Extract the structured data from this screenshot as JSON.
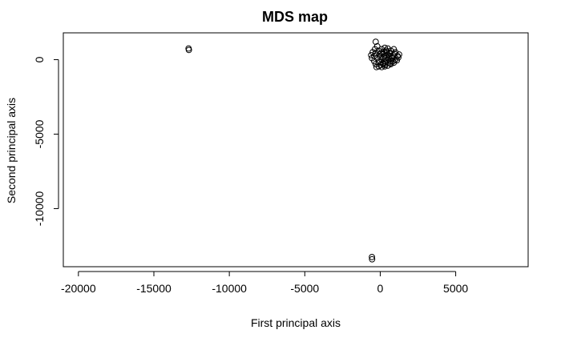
{
  "chart_data": {
    "type": "scatter",
    "title": "MDS map",
    "xlabel": "First principal axis",
    "ylabel": "Second principal axis",
    "xlim": [
      -21000,
      9800
    ],
    "ylim": [
      -13900,
      1800
    ],
    "xticks": [
      -20000,
      -15000,
      -10000,
      -5000,
      0,
      5000
    ],
    "xtick_labels": [
      "-20000",
      "-15000",
      "-10000",
      "-5000",
      "0",
      "5000"
    ],
    "yticks": [
      0,
      -5000,
      -10000
    ],
    "ytick_labels": [
      "0",
      "-5000",
      "-10000"
    ],
    "marker": "open-circle",
    "color": "#000000",
    "points": [
      {
        "x": -12700,
        "y": 750
      },
      {
        "x": -12680,
        "y": 650
      },
      {
        "x": -550,
        "y": -13250
      },
      {
        "x": -540,
        "y": -13400
      },
      {
        "x": -300,
        "y": 1200
      },
      {
        "x": -200,
        "y": 900
      },
      {
        "x": -500,
        "y": 500
      },
      {
        "x": -600,
        "y": 300
      },
      {
        "x": -550,
        "y": 100
      },
      {
        "x": -400,
        "y": -100
      },
      {
        "x": -300,
        "y": -300
      },
      {
        "x": -250,
        "y": -500
      },
      {
        "x": -100,
        "y": -450
      },
      {
        "x": 0,
        "y": -350
      },
      {
        "x": 100,
        "y": -500
      },
      {
        "x": 200,
        "y": -300
      },
      {
        "x": 300,
        "y": -450
      },
      {
        "x": 500,
        "y": -400
      },
      {
        "x": 700,
        "y": -300
      },
      {
        "x": 900,
        "y": -200
      },
      {
        "x": 1100,
        "y": -50
      },
      {
        "x": 1200,
        "y": 150
      },
      {
        "x": 1250,
        "y": 350
      },
      {
        "x": 1000,
        "y": 500
      },
      {
        "x": 900,
        "y": 700
      },
      {
        "x": 700,
        "y": 600
      },
      {
        "x": 500,
        "y": 750
      },
      {
        "x": 300,
        "y": 800
      },
      {
        "x": 100,
        "y": 700
      },
      {
        "x": -100,
        "y": 600
      },
      {
        "x": -300,
        "y": 450
      },
      {
        "x": -400,
        "y": 250
      },
      {
        "x": -200,
        "y": 100
      },
      {
        "x": 0,
        "y": 200
      },
      {
        "x": 200,
        "y": 400
      },
      {
        "x": 400,
        "y": 300
      },
      {
        "x": 600,
        "y": 200
      },
      {
        "x": 800,
        "y": 100
      },
      {
        "x": 1000,
        "y": 0
      },
      {
        "x": 700,
        "y": -100
      },
      {
        "x": 500,
        "y": -200
      },
      {
        "x": 300,
        "y": -100
      },
      {
        "x": 100,
        "y": 0
      },
      {
        "x": -100,
        "y": -150
      },
      {
        "x": 50,
        "y": 450
      },
      {
        "x": 250,
        "y": 550
      },
      {
        "x": 450,
        "y": 500
      },
      {
        "x": 650,
        "y": 400
      },
      {
        "x": 850,
        "y": 300
      },
      {
        "x": 350,
        "y": 100
      },
      {
        "x": 550,
        "y": 0
      },
      {
        "x": 150,
        "y": -250
      },
      {
        "x": 400,
        "y": 600
      },
      {
        "x": 200,
        "y": 150
      },
      {
        "x": 600,
        "y": 450
      },
      {
        "x": -50,
        "y": 350
      },
      {
        "x": 750,
        "y": 150
      },
      {
        "x": 950,
        "y": 400
      },
      {
        "x": 1150,
        "y": 250
      },
      {
        "x": -350,
        "y": 700
      },
      {
        "x": 300,
        "y": -350
      },
      {
        "x": 650,
        "y": -250
      },
      {
        "x": 850,
        "y": -100
      }
    ]
  }
}
